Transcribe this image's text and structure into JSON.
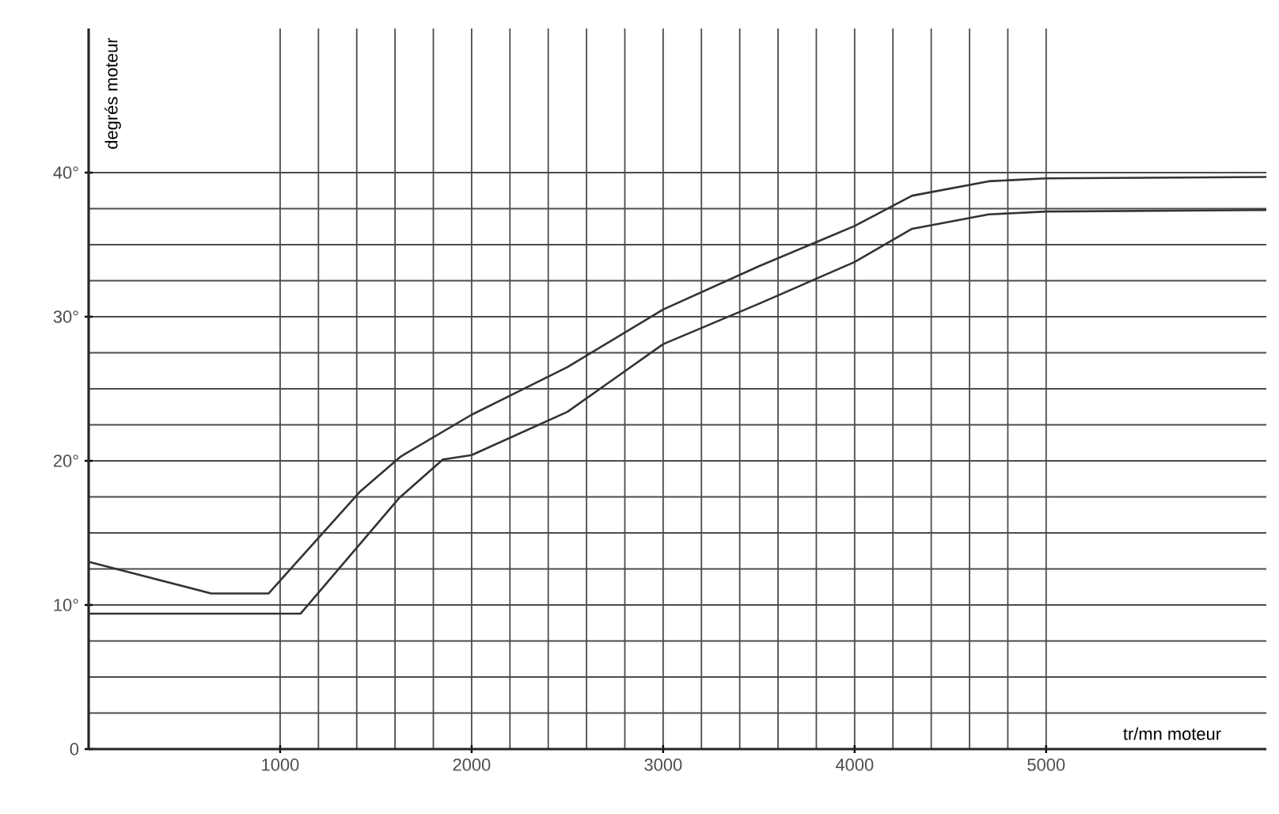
{
  "chart_data": {
    "type": "line",
    "xlabel": "tr/mn moteur",
    "ylabel": "degrés moteur",
    "xlim": [
      0,
      6150
    ],
    "ylim": [
      0,
      50
    ],
    "xticks": [
      1000,
      2000,
      3000,
      4000,
      5000
    ],
    "yticks": [
      0,
      {
        "value": 10,
        "label": "10°"
      },
      {
        "value": 20,
        "label": "20°"
      },
      {
        "value": 30,
        "label": "30°"
      },
      {
        "value": 40,
        "label": "40°"
      }
    ],
    "grid": true,
    "line_style": "solid",
    "marker": "none",
    "series": [
      {
        "color": "#333333",
        "x": [
          0,
          640,
          940,
          1420,
          1630,
          2000,
          2500,
          3000,
          3500,
          4000,
          4300,
          4700,
          5000,
          6150
        ],
        "values": [
          13.0,
          10.8,
          10.8,
          17.9,
          20.3,
          23.2,
          26.5,
          30.5,
          33.5,
          36.3,
          38.4,
          39.4,
          39.6,
          39.7
        ]
      },
      {
        "color": "#333333",
        "x": [
          0,
          1107,
          1620,
          1850,
          2000,
          2500,
          3000,
          3500,
          4000,
          4300,
          4700,
          5000,
          6150
        ],
        "values": [
          9.4,
          9.4,
          17.4,
          20.1,
          20.4,
          23.4,
          28.1,
          30.9,
          33.8,
          36.1,
          37.1,
          37.3,
          37.4
        ]
      }
    ]
  }
}
